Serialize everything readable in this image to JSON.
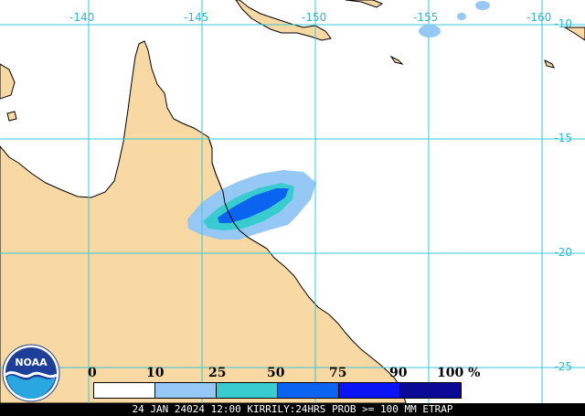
{
  "map": {
    "land_color": "#f8d8a3",
    "ocean_color": "#ffffff",
    "grid_color": "#36c8d6",
    "coast_color": "#000000",
    "longitude_labels": [
      "-140",
      "-145",
      "-150",
      "-155",
      "-160"
    ],
    "latitude_labels": [
      "-10",
      "-15",
      "-20",
      "-25"
    ]
  },
  "legend": {
    "ticks": [
      "0",
      "10",
      "25",
      "50",
      "75",
      "90",
      "100 %"
    ],
    "colors": [
      "#ffffff",
      "#96c8f5",
      "#38ccd0",
      "#0a64f0",
      "#0a14f5",
      "#0a0a96"
    ]
  },
  "logo": {
    "text": "NOAA"
  },
  "footer": {
    "text": "24 JAN 24024 12:00 KIRRILY:24HRS PROB >= 100 MM ETRAP"
  }
}
